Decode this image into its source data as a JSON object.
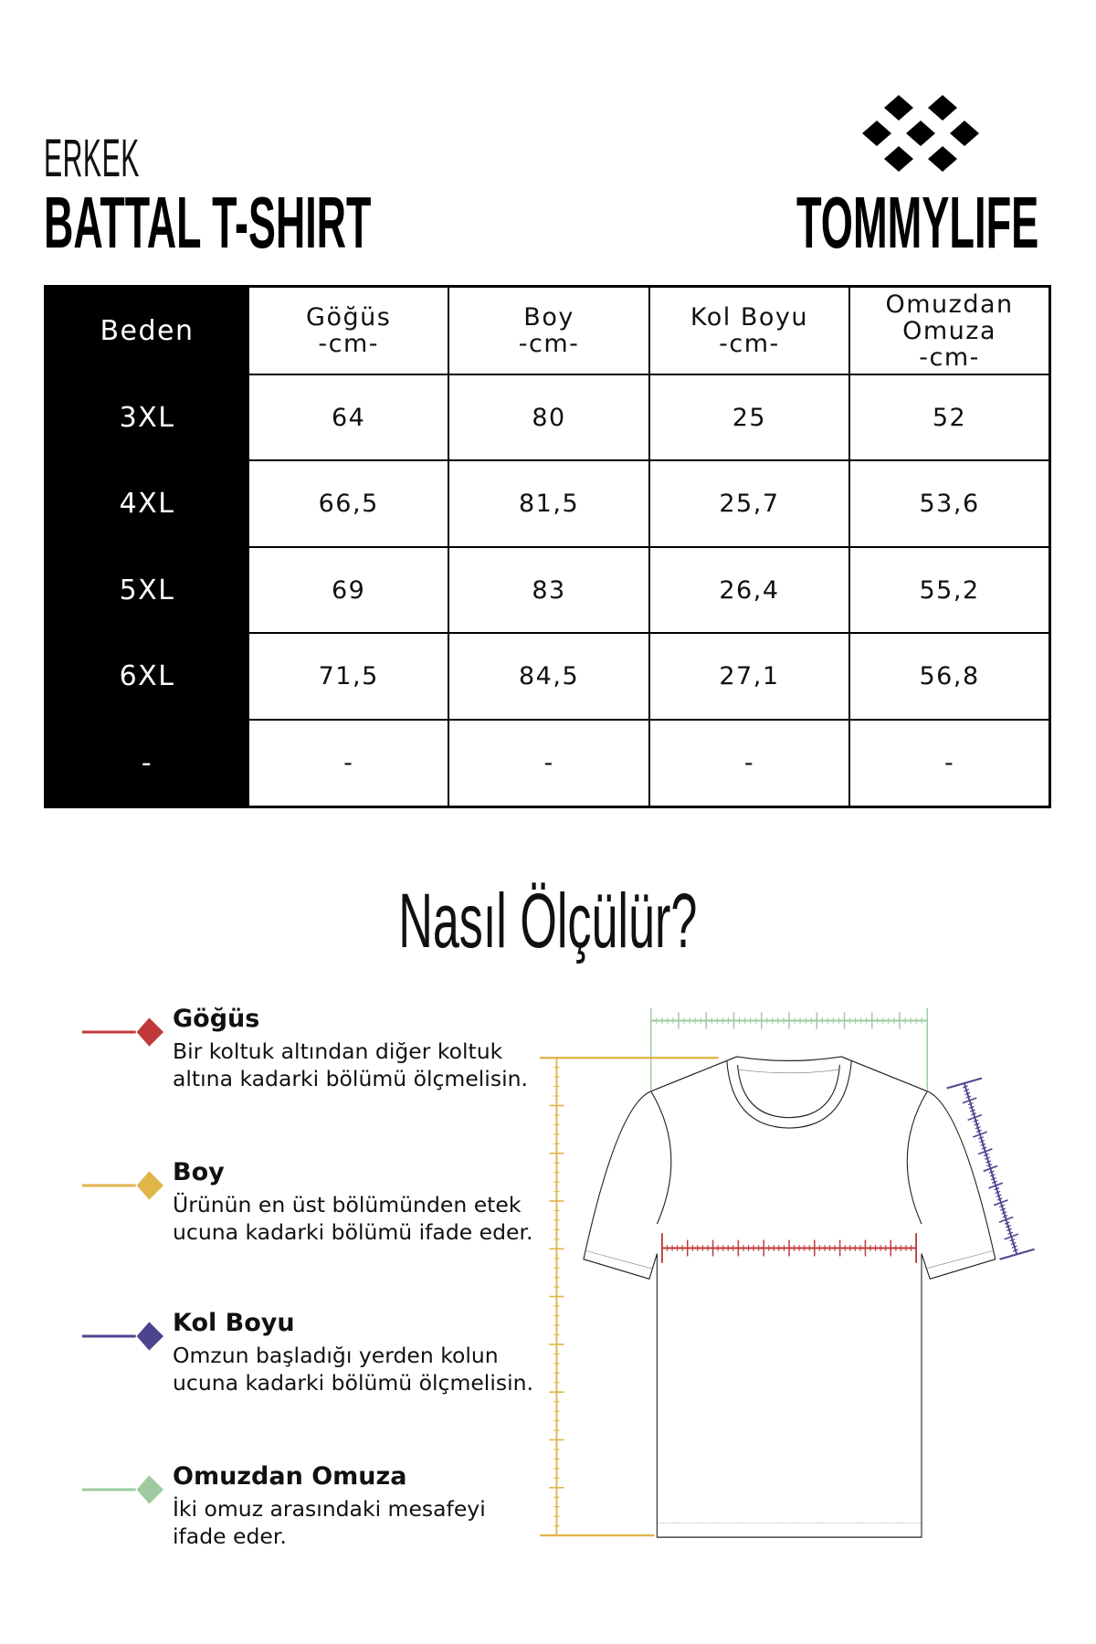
{
  "header": {
    "subtitle": "ERKEK",
    "title": "BATTAL T-SHIRT",
    "brand": "TOMMYLIFE",
    "brand_logo_icon": "diamond-cluster-logo"
  },
  "size_table": {
    "headers": [
      {
        "line1": "Beden"
      },
      {
        "line1": "Göğüs",
        "line2": "-cm-"
      },
      {
        "line1": "Boy",
        "line2": "-cm-"
      },
      {
        "line1": "Kol Boyu",
        "line2": "-cm-"
      },
      {
        "line1": "Omuzdan",
        "line2": "Omuza",
        "line3": "-cm-"
      }
    ],
    "rows": [
      [
        "3XL",
        "64",
        "80",
        "25",
        "52"
      ],
      [
        "4XL",
        "66,5",
        "81,5",
        "25,7",
        "53,6"
      ],
      [
        "5XL",
        "69",
        "83",
        "26,4",
        "55,2"
      ],
      [
        "6XL",
        "71,5",
        "84,5",
        "27,1",
        "56,8"
      ],
      [
        "-",
        "-",
        "-",
        "-",
        "-"
      ]
    ]
  },
  "how_to": {
    "title": "Nasıl Ölçülür?",
    "items": [
      {
        "title": "Göğüs",
        "desc": "Bir koltuk altından diğer koltuk altına kadarki bölümü ölçmelisin.",
        "color": "#c0393b"
      },
      {
        "title": "Boy",
        "desc": "Ürünün en üst bölümünden etek ucuna kadarki bölümü ifade eder.",
        "color": "#e0b54a"
      },
      {
        "title": "Kol Boyu",
        "desc": "Omzun başladığı yerden kolun ucuna kadarki bölümü ölçmelisin.",
        "color": "#4b4590"
      },
      {
        "title": "Omuzdan Omuza",
        "desc": "İki omuz arasındaki mesafeyi ifade eder.",
        "color": "#9dcb9f"
      }
    ]
  }
}
